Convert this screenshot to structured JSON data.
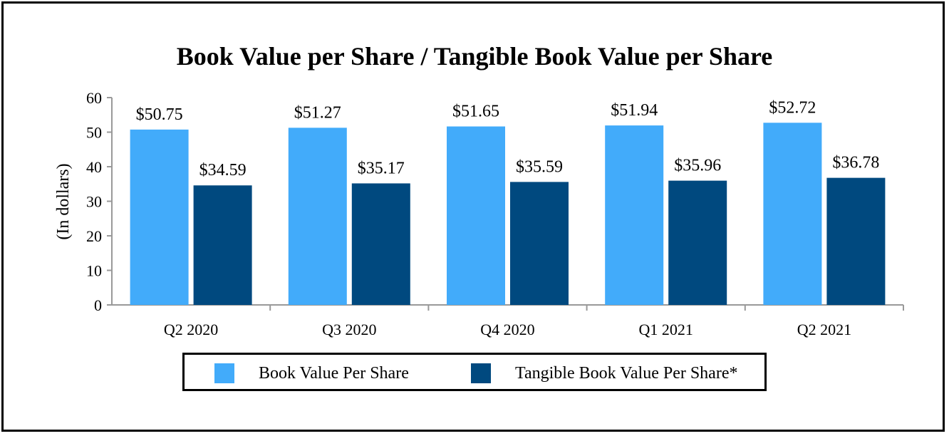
{
  "chart_data": {
    "type": "bar",
    "title": "Book Value per Share / Tangible Book Value per Share",
    "xlabel": "",
    "ylabel": "(In dollars)",
    "ylim": [
      0,
      60
    ],
    "yticks": [
      0,
      10,
      20,
      30,
      40,
      50,
      60
    ],
    "categories": [
      "Q2 2020",
      "Q3 2020",
      "Q4 2020",
      "Q1 2021",
      "Q2 2021"
    ],
    "series": [
      {
        "name": "Book Value Per Share",
        "color": "#42ABFA",
        "values": [
          50.75,
          51.27,
          51.65,
          51.94,
          52.72
        ],
        "labels": [
          "$50.75",
          "$51.27",
          "$51.65",
          "$51.94",
          "$52.72"
        ]
      },
      {
        "name": "Tangible Book Value Per Share*",
        "color": "#00497F",
        "values": [
          34.59,
          35.17,
          35.59,
          35.96,
          36.78
        ],
        "labels": [
          "$34.59",
          "$35.17",
          "$35.59",
          "$35.96",
          "$36.78"
        ]
      }
    ],
    "legend_position": "bottom-center",
    "grid": false
  }
}
